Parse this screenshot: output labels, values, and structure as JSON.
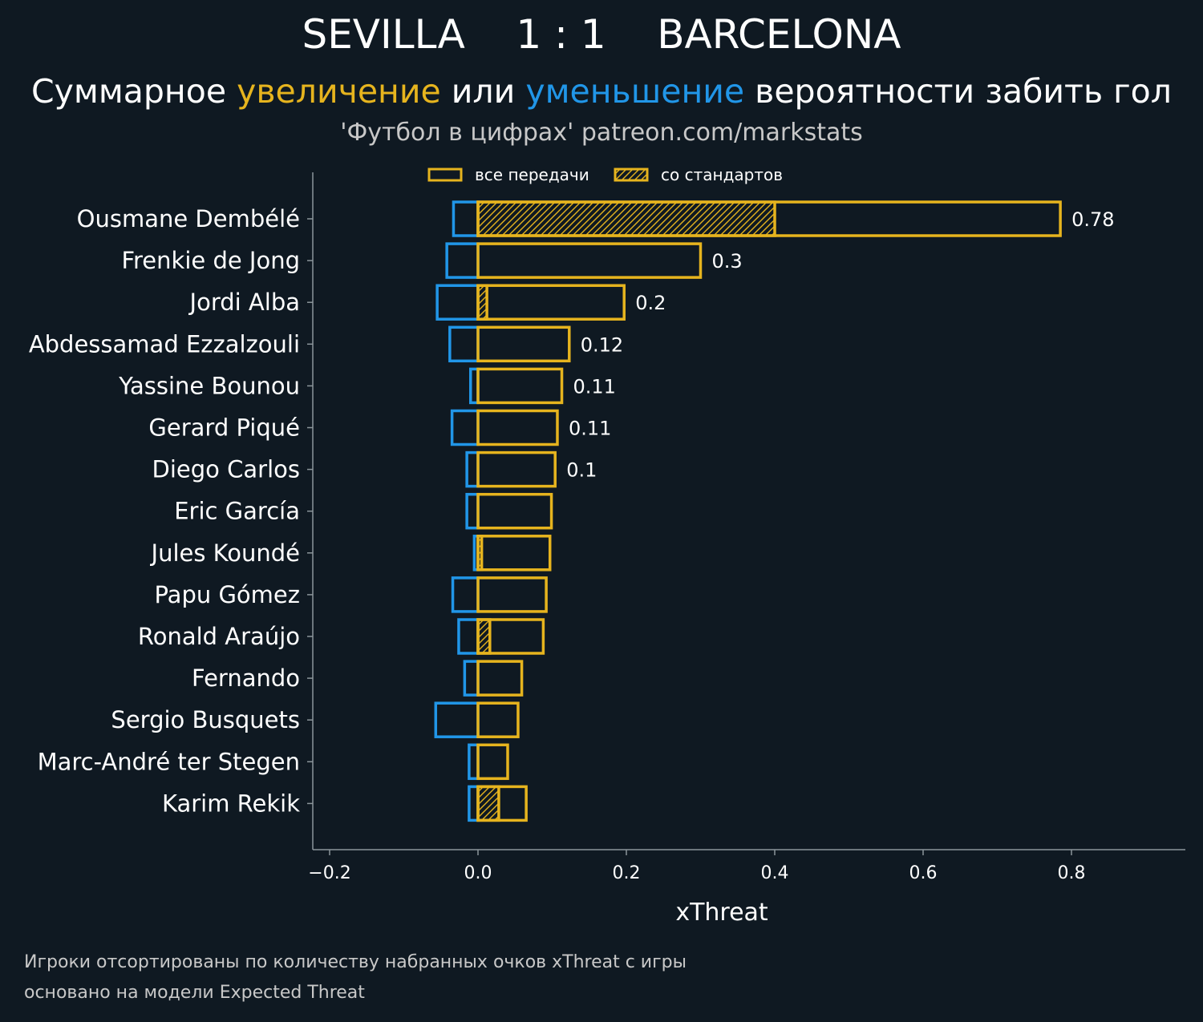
{
  "header": {
    "title": "SEVILLA    1 : 1    BARCELONA",
    "subtitle_prefix": "Суммарное ",
    "subtitle_increase": "увеличение",
    "subtitle_middle": " или ",
    "subtitle_decrease": "уменьшение",
    "subtitle_suffix": " вероятности забить гол",
    "credit": "'Футбол в цифрах' patreon.com/markstats"
  },
  "footer": {
    "line1": "Игроки отсортированы по количеству набранных очков xThreat с игры",
    "line2": "основано на модели Expected Threat"
  },
  "colors": {
    "background": "#0f1922",
    "increase": "#e6b41e",
    "decrease": "#2196e8",
    "axis": "#8c969b",
    "text": "#ffffff"
  },
  "chart_data": {
    "type": "bar",
    "orientation": "horizontal",
    "xlabel": "xThreat",
    "xlim": [
      -0.22,
      0.95
    ],
    "xticks": [
      -0.2,
      0.0,
      0.2,
      0.4,
      0.6,
      0.8
    ],
    "xtick_labels": [
      "−0.2",
      "0.0",
      "0.2",
      "0.4",
      "0.6",
      "0.8"
    ],
    "legend": {
      "position": "top-center",
      "items": [
        {
          "label": "все передачи",
          "style": "outline"
        },
        {
          "label": "со стандартов",
          "style": "hatched"
        }
      ]
    },
    "categories": [
      "Ousmane Dembélé",
      "Frenkie de Jong",
      "Jordi Alba",
      "Abdessamad Ezzalzouli",
      "Yassine Bounou",
      "Gerard Piqué",
      "Diego Carlos",
      "Eric García",
      "Jules Koundé",
      "Papu Gómez",
      "Ronald Araújo",
      "Fernando",
      "Sergio Busquets",
      "Marc-André ter Stegen",
      "Karim Rekik"
    ],
    "series": [
      {
        "name": "увеличение (все передачи)",
        "values": [
          0.785,
          0.3,
          0.197,
          0.123,
          0.113,
          0.107,
          0.104,
          0.099,
          0.097,
          0.092,
          0.088,
          0.059,
          0.054,
          0.04,
          0.065
        ]
      },
      {
        "name": "увеличение (со стандартов)",
        "values": [
          0.4,
          0.0,
          0.012,
          0.0,
          0.0,
          0.0,
          0.0,
          0.0,
          0.005,
          0.0,
          0.016,
          0.0,
          0.0,
          0.0,
          0.028
        ]
      },
      {
        "name": "уменьшение (все передачи)",
        "values": [
          -0.033,
          -0.042,
          -0.055,
          -0.038,
          -0.01,
          -0.035,
          -0.015,
          -0.015,
          -0.005,
          -0.034,
          -0.026,
          -0.018,
          -0.057,
          -0.012,
          -0.012
        ]
      }
    ],
    "value_labels": [
      "0.78",
      "0.3",
      "0.2",
      "0.12",
      "0.11",
      "0.11",
      "0.1",
      "",
      "",
      "",
      "",
      "",
      "",
      "",
      ""
    ]
  }
}
